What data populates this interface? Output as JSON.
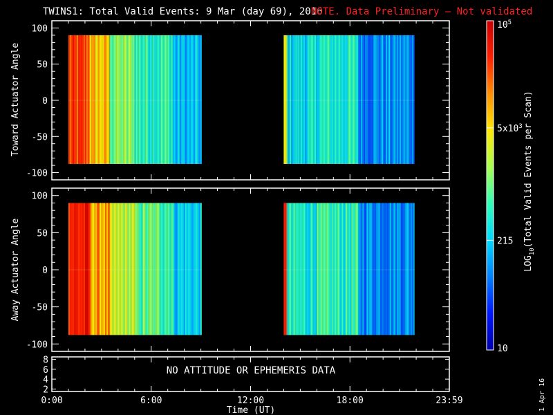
{
  "header": {
    "title": "TWINS1: Total Valid Events:  9 Mar (day  69), 2016",
    "warning": "NOTE. Data Preliminary – Not validated",
    "title_color": "#ffffff",
    "warning_color": "#ff2020"
  },
  "chart_data": [
    {
      "type": "heatmap",
      "ylabel": "Toward Actuator Angle",
      "ylim": [
        -110,
        110
      ],
      "yticks": [
        100,
        50,
        0,
        -50,
        -100
      ],
      "data_y_range": [
        -88,
        90
      ],
      "data_intervals_hours": [
        [
          1.0,
          9.05
        ],
        [
          14.0,
          21.9
        ]
      ],
      "xlim_hours": [
        0,
        24
      ],
      "xticks": [
        "0:00",
        "6:00",
        "12:00",
        "18:00",
        "23:59"
      ],
      "column_profile": [
        {
          "hours": [
            1.0,
            2.3
          ],
          "level": 0.84
        },
        {
          "hours": [
            2.3,
            3.5
          ],
          "level": 0.7
        },
        {
          "hours": [
            3.5,
            5.0
          ],
          "level": 0.52
        },
        {
          "hours": [
            5.0,
            7.3
          ],
          "level": 0.44
        },
        {
          "hours": [
            7.3,
            9.05
          ],
          "level": 0.3
        },
        {
          "hours": [
            14.0,
            14.2
          ],
          "level": 0.6
        },
        {
          "hours": [
            14.2,
            16.0
          ],
          "level": 0.36
        },
        {
          "hours": [
            16.0,
            18.5
          ],
          "level": 0.4
        },
        {
          "hours": [
            18.5,
            21.9
          ],
          "level": 0.25
        }
      ]
    },
    {
      "type": "heatmap",
      "ylabel": "Away Actuator Angle",
      "ylim": [
        -110,
        110
      ],
      "yticks": [
        100,
        50,
        0,
        -50,
        -100
      ],
      "data_y_range": [
        -88,
        90
      ],
      "data_intervals_hours": [
        [
          1.0,
          9.05
        ],
        [
          14.0,
          21.9
        ]
      ],
      "xlim_hours": [
        0,
        24
      ],
      "xticks": [
        "0:00",
        "6:00",
        "12:00",
        "18:00",
        "23:59"
      ],
      "column_profile": [
        {
          "hours": [
            1.0,
            2.3
          ],
          "level": 0.9
        },
        {
          "hours": [
            2.3,
            3.5
          ],
          "level": 0.74
        },
        {
          "hours": [
            3.5,
            5.0
          ],
          "level": 0.58
        },
        {
          "hours": [
            5.0,
            7.3
          ],
          "level": 0.48
        },
        {
          "hours": [
            7.3,
            9.05
          ],
          "level": 0.34
        },
        {
          "hours": [
            14.0,
            14.2
          ],
          "level": 0.85
        },
        {
          "hours": [
            14.2,
            16.0
          ],
          "level": 0.4
        },
        {
          "hours": [
            16.0,
            18.5
          ],
          "level": 0.42
        },
        {
          "hours": [
            18.5,
            21.9
          ],
          "level": 0.26
        }
      ]
    },
    {
      "type": "line",
      "ylim": [
        1.5,
        8.5
      ],
      "yticks": [
        8,
        6,
        4,
        2
      ],
      "message": "NO ATTITUDE OR EPHEMERIS DATA",
      "xlabel": "Time (UT)",
      "xticks": [
        "0:00",
        "6:00",
        "12:00",
        "18:00",
        "23:59"
      ]
    }
  ],
  "colorbar": {
    "label": "LOG10(Total Valid  Events per Scan)",
    "tick_labels": [
      "10",
      "215",
      "5x10^3",
      "10^5"
    ],
    "scale": "log",
    "range": [
      10,
      100000
    ],
    "colormap": [
      "#0000a8",
      "#0018ff",
      "#0080ff",
      "#00d8ff",
      "#30ffb8",
      "#a8ff50",
      "#ffe800",
      "#ff9000",
      "#ff2000",
      "#c80000"
    ]
  },
  "footer": {
    "date_stamp": "1 Apr 16"
  }
}
